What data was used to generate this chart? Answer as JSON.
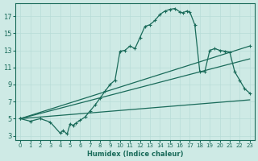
{
  "xlabel": "Humidex (Indice chaleur)",
  "xlim": [
    -0.5,
    23.5
  ],
  "ylim": [
    2.5,
    18.5
  ],
  "xticks": [
    0,
    1,
    2,
    3,
    4,
    5,
    6,
    7,
    8,
    9,
    10,
    11,
    12,
    13,
    14,
    15,
    16,
    17,
    18,
    19,
    20,
    21,
    22,
    23
  ],
  "yticks": [
    3,
    5,
    7,
    9,
    11,
    13,
    15,
    17
  ],
  "bg_color": "#ceeae5",
  "line_color": "#1a6b5a",
  "grid_color": "#b8ddd7",
  "curve1_x": [
    0,
    1,
    2,
    3,
    4,
    4.3,
    4.7,
    5,
    5.3,
    5.6,
    6,
    6.5,
    7,
    7.5,
    8,
    8.5,
    9,
    9.5,
    10,
    10.5,
    11,
    11.5,
    12,
    12.5,
    13,
    13.5,
    14,
    14.5,
    15,
    15.5,
    16,
    16.3,
    16.7,
    17,
    17.5,
    18,
    18.5,
    19,
    19.5,
    20,
    20.5,
    21,
    21.5,
    22,
    22.5,
    23
  ],
  "curve1_y": [
    5.0,
    4.7,
    5.0,
    4.6,
    3.3,
    3.6,
    3.2,
    4.4,
    4.2,
    4.5,
    4.8,
    5.2,
    5.9,
    6.6,
    7.4,
    8.2,
    9.0,
    9.5,
    12.9,
    13.0,
    13.5,
    13.2,
    14.5,
    15.8,
    16.0,
    16.5,
    17.2,
    17.6,
    17.8,
    17.9,
    17.5,
    17.4,
    17.6,
    17.5,
    16.0,
    10.5,
    10.5,
    13.0,
    13.2,
    13.0,
    12.9,
    12.8,
    10.5,
    9.5,
    8.5,
    8.0
  ],
  "curve2_x": [
    0,
    23
  ],
  "curve2_y": [
    5.0,
    13.5
  ],
  "curve3_x": [
    0,
    23
  ],
  "curve3_y": [
    5.0,
    12.0
  ],
  "curve4_x": [
    0,
    23
  ],
  "curve4_y": [
    5.0,
    7.2
  ]
}
